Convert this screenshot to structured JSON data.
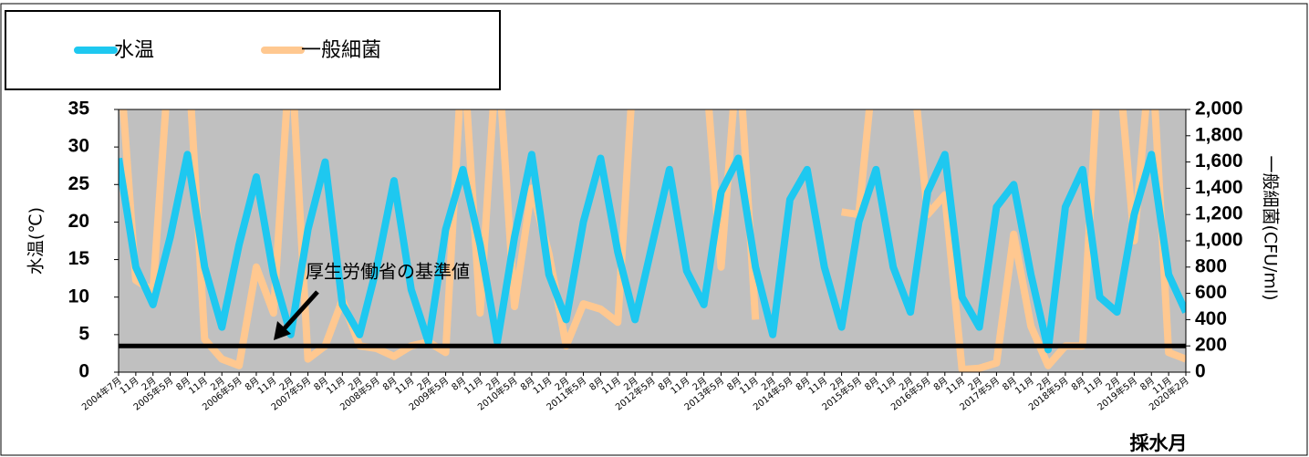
{
  "chart_data": {
    "type": "line",
    "y_label": "水温(℃)",
    "y2_label": "一般細菌(CFU/ml)",
    "x_label": "採水月",
    "categories": [
      "2004年7月",
      "11月",
      "2月",
      "2005年5月",
      "8月",
      "11月",
      "2月",
      "2006年5月",
      "8月",
      "11月",
      "2月",
      "2007年5月",
      "8月",
      "11月",
      "2月",
      "2008年5月",
      "8月",
      "11月",
      "2月",
      "2009年5月",
      "8月",
      "11月",
      "2月",
      "2010年5月",
      "8月",
      "11月",
      "2月",
      "2011年5月",
      "8月",
      "11月",
      "2月",
      "2012年5月",
      "8月",
      "11月",
      "2月",
      "2013年5月",
      "8月",
      "11月",
      "2月",
      "2014年5月",
      "8月",
      "11月",
      "2月",
      "2015年5月",
      "8月",
      "11月",
      "2月",
      "2016年5月",
      "8月",
      "11月",
      "2月",
      "2017年5月",
      "8月",
      "11月",
      "2月",
      "2018年5月",
      "8月",
      "11月",
      "2月",
      "2019年5月",
      "8月",
      "11月",
      "2020年2月"
    ],
    "series": [
      {
        "name": "水温",
        "color": "#1ec8f0",
        "axis": "y",
        "values": [
          28.5,
          14,
          9,
          18,
          29,
          14,
          6,
          17,
          26,
          13,
          5,
          19,
          28,
          9,
          5,
          14,
          25.5,
          11,
          4,
          19,
          27,
          17,
          4,
          18,
          29,
          13,
          7,
          20,
          28.5,
          16,
          7,
          17,
          27,
          13.5,
          9,
          24,
          28.5,
          14,
          5,
          23,
          27,
          14,
          6,
          20,
          27,
          14,
          8,
          24,
          29,
          10,
          6,
          22,
          25,
          13,
          3,
          22,
          27,
          10,
          8,
          21,
          29,
          13,
          8
        ]
      },
      {
        "name": "一般細菌",
        "color": "#ffc890",
        "axis": "y2",
        "values": [
          2500,
          700,
          620,
          2500,
          2500,
          250,
          100,
          50,
          800,
          450,
          2500,
          100,
          200,
          550,
          200,
          180,
          120,
          200,
          230,
          150,
          2500,
          450,
          2500,
          500,
          1400,
          900,
          200,
          520,
          480,
          380,
          2500,
          null,
          null,
          null,
          2500,
          800,
          2500,
          400,
          null,
          null,
          null,
          null,
          1220,
          1200,
          2500,
          null,
          2500,
          1200,
          1350,
          20,
          30,
          70,
          1050,
          350,
          50,
          200,
          200,
          2500,
          2500,
          1000,
          2500,
          150,
          100
        ]
      }
    ],
    "ylim": [
      0,
      35
    ],
    "yticks": [
      0,
      5,
      10,
      15,
      20,
      25,
      30,
      35
    ],
    "y2lim": [
      0,
      2000
    ],
    "y2ticks": [
      0,
      200,
      400,
      600,
      800,
      {
        "value": 1000,
        "label": "1,000"
      },
      {
        "value": 1200,
        "label": "1,200"
      },
      {
        "value": 1400,
        "label": "1,400"
      },
      {
        "value": 1600,
        "label": "1,600"
      },
      {
        "value": 1800,
        "label": "1,800"
      },
      {
        "value": 2000,
        "label": "2,000"
      }
    ],
    "reference_line": {
      "value": 200,
      "axis": "y2",
      "label": "厚生労働省の基準値",
      "color": "#000000"
    },
    "plot_background": "#c0c0c0"
  }
}
